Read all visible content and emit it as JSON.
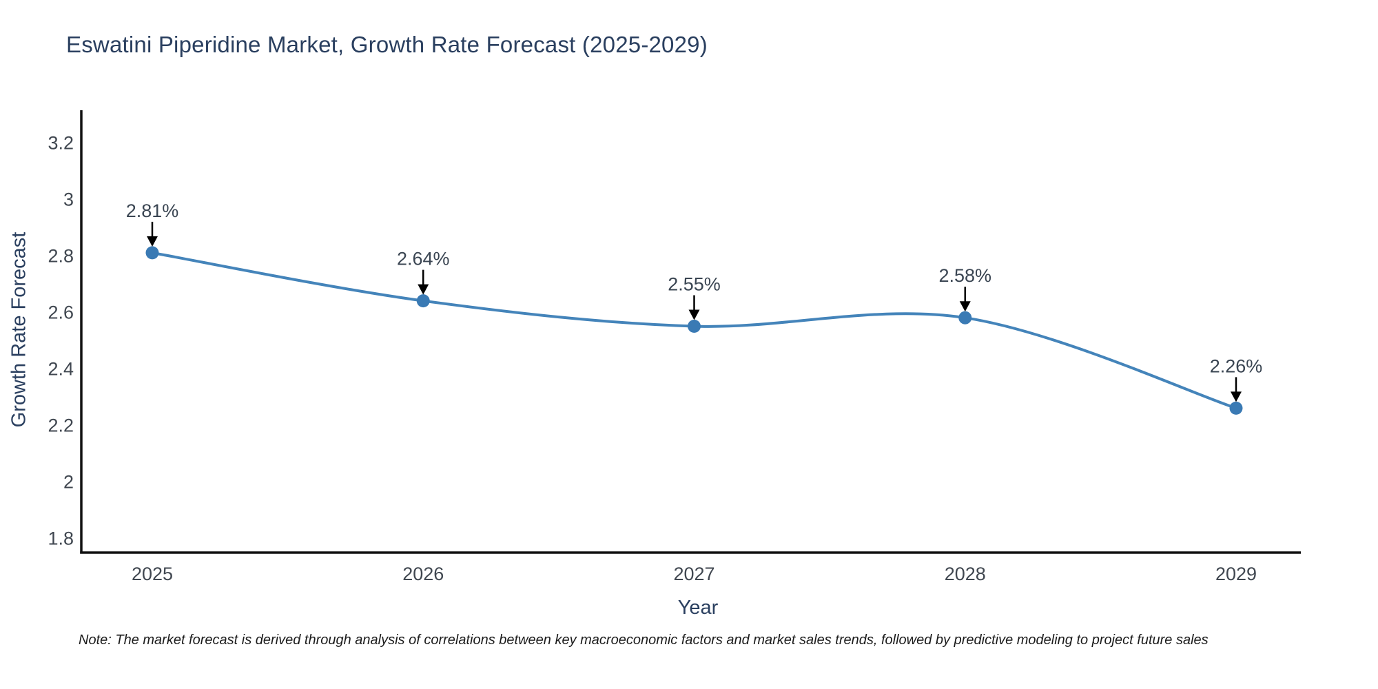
{
  "page": {
    "note": "Note: The market forecast is derived through analysis of correlations between key macroeconomic factors and market sales trends, followed by predictive modeling to project future sales"
  },
  "chart_data": {
    "type": "line",
    "line_shape": "spline",
    "title": "Eswatini Piperidine Market, Growth Rate Forecast (2025-2029)",
    "xlabel": "Year",
    "ylabel": "Growth Rate Forecast",
    "categories": [
      2025,
      2026,
      2027,
      2028,
      2029
    ],
    "values": [
      2.81,
      2.64,
      2.55,
      2.58,
      2.26
    ],
    "point_labels": [
      "2.81%",
      "2.64%",
      "2.55%",
      "2.58%",
      "2.26%"
    ],
    "yticks": [
      1.8,
      2,
      2.2,
      2.4,
      2.6,
      2.8,
      3,
      3.2
    ],
    "ylim": [
      1.75,
      3.31
    ],
    "grid": false,
    "legend": "none",
    "marker_size": 9.5,
    "colors": {
      "line": "#4484ba",
      "marker": "#3a7ab4",
      "annotation_arrow": "#000000",
      "annotation_text": "#3a4552",
      "axis_line": "#111111",
      "tick_text": "#404750",
      "title_text": "#2a3f5f"
    }
  }
}
